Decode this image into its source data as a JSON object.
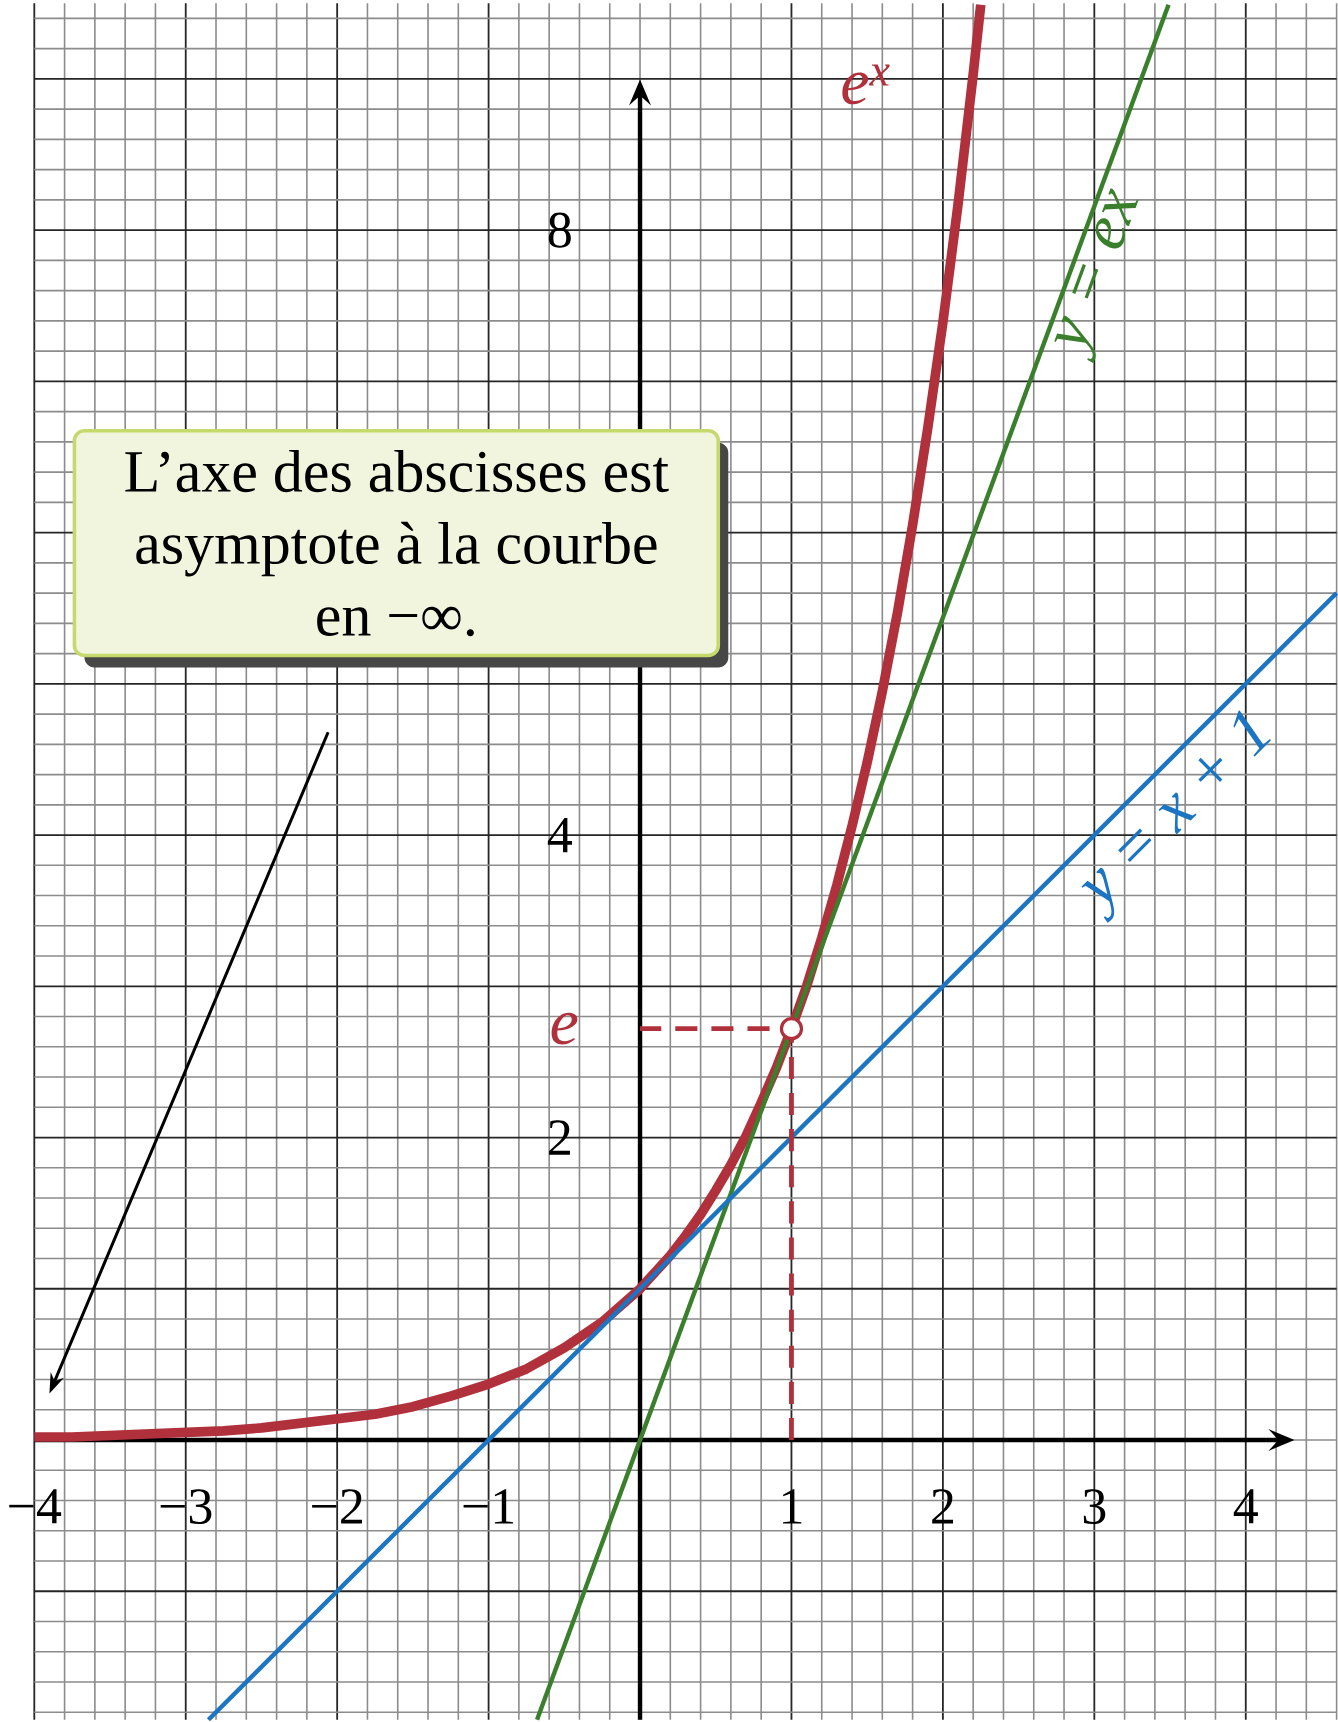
{
  "chart_data": {
    "type": "line",
    "xlim": [
      -4,
      4.6
    ],
    "ylim": [
      -1.85,
      9.5
    ],
    "xticks": [
      {
        "value": -4,
        "label": "−4"
      },
      {
        "value": -3,
        "label": "−3"
      },
      {
        "value": -2,
        "label": "−2"
      },
      {
        "value": -1,
        "label": "−1"
      },
      1,
      2,
      3,
      4
    ],
    "yticks": [
      {
        "value": -1,
        "label": null
      },
      {
        "value": 1,
        "label": null
      },
      2,
      {
        "value": 3,
        "label": null
      },
      4,
      {
        "value": 5,
        "label": null
      },
      {
        "value": 6,
        "label": null
      },
      {
        "value": 7,
        "label": null
      },
      8,
      {
        "value": 9,
        "label": null
      }
    ],
    "grid": true,
    "series": [
      {
        "name": "e$^{x}$",
        "color": "#b0303b",
        "x": [
          -4,
          -3.75,
          -3.5,
          -3.25,
          -3,
          -2.75,
          -2.5,
          -2.25,
          -2,
          -1.75,
          -1.5,
          -1.25,
          -1,
          -0.75,
          -0.5,
          -0.25,
          0,
          0.1,
          0.2,
          0.3,
          0.4,
          0.5,
          0.6,
          0.7,
          0.8,
          0.9,
          1,
          1.1,
          1.2,
          1.3,
          1.4,
          1.5,
          1.6,
          1.7,
          1.8,
          1.9,
          2,
          2.1,
          2.2,
          2.25
        ],
        "values": [
          0.02,
          0.02,
          0.03,
          0.04,
          0.05,
          0.06,
          0.08,
          0.11,
          0.14,
          0.17,
          0.22,
          0.29,
          0.37,
          0.47,
          0.61,
          0.78,
          1,
          1.11,
          1.22,
          1.35,
          1.49,
          1.65,
          1.82,
          2.01,
          2.23,
          2.46,
          2.72,
          3.0,
          3.32,
          3.67,
          4.06,
          4.48,
          4.95,
          5.47,
          6.05,
          6.69,
          7.39,
          8.17,
          9.03,
          9.49
        ]
      },
      {
        "name": "y = ex",
        "color": "#3a7f2b",
        "x": [
          -0.68,
          3.49
        ],
        "values": [
          -1.85,
          9.49
        ]
      },
      {
        "name": "y = x + 1",
        "color": "#1b75c3",
        "x": [
          -2.85,
          4.6
        ],
        "values": [
          -1.85,
          5.6
        ]
      },
      {
        "name": "e",
        "color": "#b0303b",
        "x": [
          1,
          1,
          0
        ],
        "values": [
          0,
          2.72,
          2.72
        ],
        "line_style": "dashed"
      },
      {
        "type": "scatter",
        "color": "#b0303b",
        "x": [
          1
        ],
        "values": [
          2.72
        ],
        "marker": "circle"
      }
    ],
    "annotations": [
      "L’axe des abscisses est asymptote à la courbe en −∞."
    ]
  }
}
